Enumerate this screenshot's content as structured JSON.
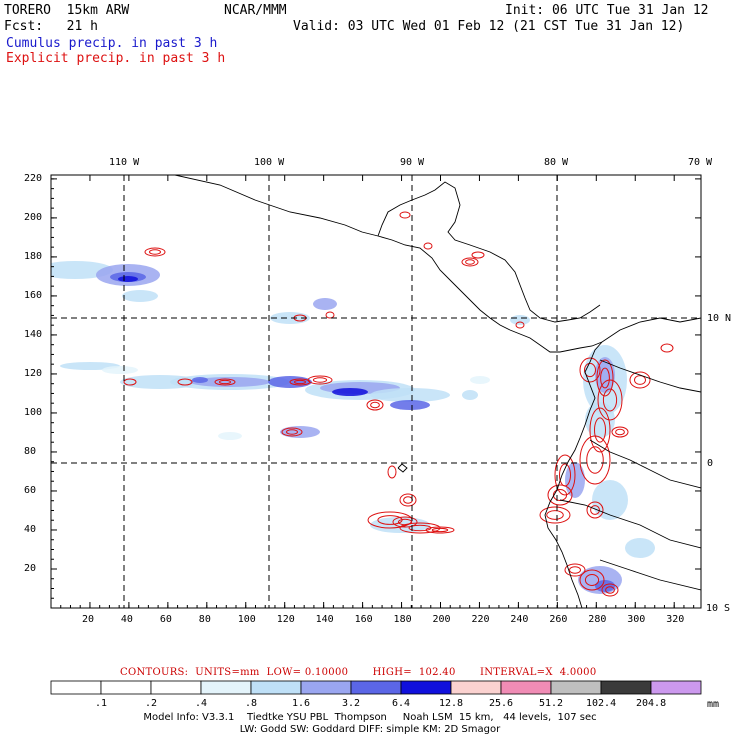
{
  "header": {
    "model": "TORERO  15km ARW",
    "org": "NCAR/MMM",
    "init": "Init: 06 UTC Tue 31 Jan 12",
    "fcst": "Fcst:   21 h",
    "valid": "Valid: 03 UTC Wed 01 Feb 12 (21 CST Tue 31 Jan 12)",
    "field1": "Cumulus precip. in past 3 h",
    "field2": "Explicit precip. in past 3 h"
  },
  "colors": {
    "field1": "#1a1acc",
    "field2": "#dd1111",
    "coast": "#000000",
    "grid": "#000000"
  },
  "axes": {
    "lon_labels": [
      "110 W",
      "100 W",
      "90 W",
      "80 W",
      "70 W"
    ],
    "lat_labels": [
      "10 N",
      "0",
      "10 S"
    ],
    "y_ticks": [
      "220",
      "200",
      "180",
      "160",
      "140",
      "120",
      "100",
      "80",
      "60",
      "40",
      "20"
    ],
    "x_ticks": [
      "20",
      "40",
      "60",
      "80",
      "100",
      "120",
      "140",
      "160",
      "180",
      "200",
      "220",
      "240",
      "260",
      "280",
      "300",
      "320"
    ]
  },
  "contours": {
    "label": "CONTOURS:  UNITS=mm  LOW= 0.10000       HIGH=  102.40       INTERVAL=X  4.0000"
  },
  "colorbar": {
    "unit": "mm",
    "labels": [
      ".1",
      ".2",
      ".4",
      ".8",
      "1.6",
      "3.2",
      "6.4",
      "12.8",
      "25.6",
      "51.2",
      "102.4",
      "204.8"
    ],
    "colors": [
      "#ffffff",
      "#ffffff",
      "#ffffff",
      "#e4f4fb",
      "#bfe0f7",
      "#9aa6f0",
      "#5b66e6",
      "#1010dc",
      "#fbd2d0",
      "#f08cb5",
      "#bfbfbf",
      "#3a3a3a",
      "#cc99ee"
    ]
  },
  "footer": {
    "line1": "Model Info: V3.3.1    Tiedtke YSU PBL  Thompson     Noah LSM  15 km,   44 levels,  107 sec",
    "line2": "LW: Godd SW: Goddard DIFF: simple KM: 2D Smagor"
  }
}
